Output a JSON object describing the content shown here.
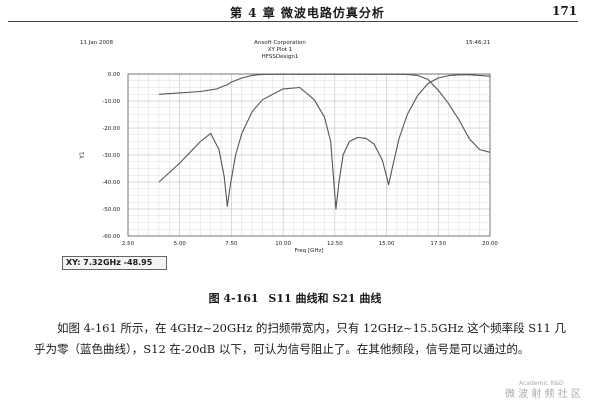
{
  "page": {
    "chapter_title": "第 4 章    微波电路仿真分析",
    "page_number": "171"
  },
  "chart_header": {
    "date": "11 Jan 2008",
    "company": "Ansoft Corporation",
    "plot_name": "XY Plot 1",
    "design": "HFSSDesign1",
    "time": "15:46:21"
  },
  "readout": "XY: 7.32GHz -48.95",
  "caption": {
    "figure_number": "图 4-161",
    "text": "S11 曲线和 S21 曲线"
  },
  "paragraph": "如图 4-161 所示，在 4GHz~20GHz 的扫频带宽内，只有 12GHz~15.5GHz 这个频率段 S11 几乎为零（蓝色曲线），S12 在-20dB 以下，可认为信号阻止了。在其他频段，信号是可以通过的。",
  "watermark": {
    "small": "Academic R&D",
    "main": "微 波 射 频 社 区"
  },
  "chart_data": {
    "type": "line",
    "title": "XY Plot 1",
    "xlabel": "Freq [GHz]",
    "ylabel": "Y1",
    "xlim": [
      2.5,
      20.0
    ],
    "ylim": [
      -60.0,
      0.0
    ],
    "x_ticks": [
      "2.50",
      "5.00",
      "7.50",
      "10.00",
      "12.50",
      "15.00",
      "17.50",
      "20.00"
    ],
    "y_ticks": [
      "0.00",
      "-10.00",
      "-20.00",
      "-30.00",
      "-40.00",
      "-50.00",
      "-60.00"
    ],
    "grid": true,
    "series": [
      {
        "x": [
          4.0,
          5.0,
          6.0,
          6.8,
          7.1,
          7.3,
          7.5,
          8.0,
          8.5,
          9.0,
          9.5,
          10.0,
          10.5,
          11.0,
          11.5,
          12.0,
          12.5,
          13.0,
          13.5,
          14.0,
          14.5,
          15.0,
          15.5,
          16.0,
          16.5,
          17.0,
          17.5,
          18.0,
          18.5,
          19.0,
          19.5,
          20.0
        ],
        "y": [
          -7.5,
          -7.0,
          -6.5,
          -5.5,
          -4.5,
          -4.0,
          -3.0,
          -1.5,
          -0.5,
          -0.2,
          -0.1,
          -0.1,
          -0.1,
          -0.1,
          -0.1,
          -0.1,
          -0.1,
          -0.1,
          -0.1,
          -0.1,
          -0.1,
          -0.1,
          -0.1,
          -0.2,
          -0.5,
          -2.0,
          -6.0,
          -11.0,
          -17.0,
          -24.0,
          -28.0,
          -29.0
        ]
      },
      {
        "x": [
          4.0,
          5.0,
          6.0,
          6.5,
          6.9,
          7.15,
          7.3,
          7.45,
          7.7,
          8.0,
          8.5,
          9.0,
          10.0,
          10.8,
          11.5,
          12.0,
          12.3,
          12.55,
          12.7,
          12.9,
          13.2,
          13.6,
          14.0,
          14.4,
          14.8,
          15.0,
          15.1,
          15.3,
          15.6,
          16.0,
          16.5,
          17.0,
          17.5,
          18.0,
          18.5,
          19.0,
          19.5,
          20.0
        ],
        "y": [
          -40.0,
          -33.0,
          -25.0,
          -22.0,
          -28.0,
          -38.0,
          -49.0,
          -41.0,
          -30.0,
          -22.0,
          -14.0,
          -9.5,
          -5.5,
          -5.0,
          -9.5,
          -16.0,
          -25.0,
          -50.0,
          -40.0,
          -30.0,
          -25.0,
          -23.5,
          -23.8,
          -26.0,
          -32.0,
          -38.0,
          -41.0,
          -34.0,
          -24.0,
          -15.0,
          -8.0,
          -3.5,
          -1.5,
          -0.6,
          -0.3,
          -0.3,
          -0.5,
          -0.8
        ]
      }
    ]
  }
}
